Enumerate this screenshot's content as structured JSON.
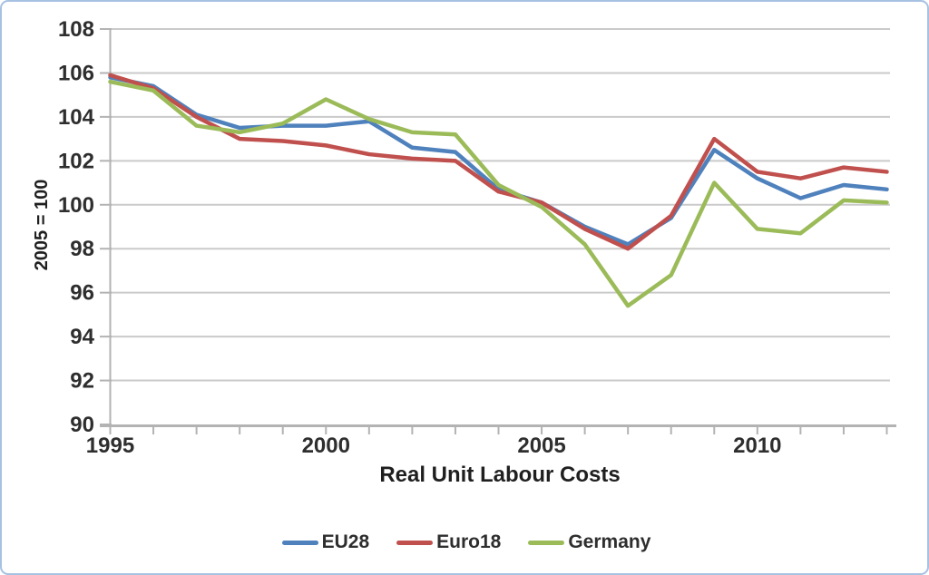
{
  "window": {
    "background": "#ffffff",
    "border_color": "#a7c1e2"
  },
  "chart_data": {
    "type": "line",
    "title": "",
    "xlabel": "Real Unit Labour Costs",
    "ylabel": "2005 = 100",
    "x": [
      1995,
      1996,
      1997,
      1998,
      1999,
      2000,
      2001,
      2002,
      2003,
      2004,
      2005,
      2006,
      2007,
      2008,
      2009,
      2010,
      2011,
      2012,
      2013
    ],
    "series": [
      {
        "name": "EU28",
        "color": "#4f81bd",
        "values": [
          105.8,
          105.4,
          104.1,
          103.5,
          103.6,
          103.6,
          103.8,
          102.6,
          102.4,
          100.7,
          100.1,
          99.0,
          98.2,
          99.4,
          102.5,
          101.2,
          100.3,
          100.9,
          100.7
        ]
      },
      {
        "name": "Euro18",
        "color": "#c0504d",
        "values": [
          105.9,
          105.3,
          104.0,
          103.0,
          102.9,
          102.7,
          102.3,
          102.1,
          102.0,
          100.6,
          100.1,
          98.9,
          98.0,
          99.5,
          103.0,
          101.5,
          101.2,
          101.7,
          101.5
        ]
      },
      {
        "name": "Germany",
        "color": "#9bbb59",
        "values": [
          105.6,
          105.2,
          103.6,
          103.3,
          103.7,
          104.8,
          103.9,
          103.3,
          103.2,
          100.9,
          99.9,
          98.2,
          95.4,
          96.8,
          101.0,
          98.9,
          98.7,
          100.2,
          100.1
        ]
      }
    ],
    "ylim": [
      90,
      108
    ],
    "yticks": [
      90,
      92,
      94,
      96,
      98,
      100,
      102,
      104,
      106,
      108
    ],
    "xticks": [
      1995,
      2000,
      2005,
      2010
    ],
    "xtick_minor_step": 1,
    "grid": "horizontal",
    "legend_position": "bottom",
    "colors": {
      "grid": "#cacaca",
      "axis": "#b3b3b3",
      "tick_text": "#2e2e2e"
    }
  }
}
